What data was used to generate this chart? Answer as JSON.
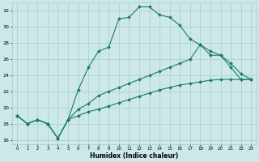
{
  "xlabel": "Humidex (Indice chaleur)",
  "bg_color": "#cce8e8",
  "grid_color": "#aacccc",
  "line_color": "#1a7a6e",
  "xlim": [
    -0.5,
    23.5
  ],
  "ylim": [
    15.5,
    33.0
  ],
  "yticks": [
    16,
    18,
    20,
    22,
    24,
    26,
    28,
    30,
    32
  ],
  "xticks": [
    0,
    1,
    2,
    3,
    4,
    5,
    6,
    7,
    8,
    9,
    10,
    11,
    12,
    13,
    14,
    15,
    16,
    17,
    18,
    19,
    20,
    21,
    22,
    23
  ],
  "series1_x": [
    0,
    1,
    2,
    3,
    4,
    5,
    6,
    7,
    8,
    9,
    10,
    11,
    12,
    13,
    14,
    15,
    16,
    17,
    18,
    19,
    20,
    21,
    22,
    23
  ],
  "series1_y": [
    19.0,
    18.0,
    18.5,
    18.0,
    16.2,
    18.5,
    22.2,
    25.0,
    27.0,
    27.5,
    31.0,
    31.2,
    32.5,
    32.5,
    31.5,
    31.2,
    30.2,
    28.5,
    27.8,
    26.5,
    26.5,
    25.0,
    23.5,
    23.5
  ],
  "series2_x": [
    0,
    1,
    2,
    3,
    4,
    5,
    6,
    7,
    8,
    9,
    10,
    11,
    12,
    13,
    14,
    15,
    16,
    17,
    18,
    19,
    20,
    21,
    22,
    23
  ],
  "series2_y": [
    19.0,
    18.0,
    18.5,
    18.0,
    16.2,
    18.5,
    19.8,
    20.5,
    21.5,
    22.0,
    22.5,
    23.0,
    23.5,
    24.0,
    24.5,
    25.0,
    25.5,
    26.0,
    27.8,
    27.0,
    26.5,
    25.5,
    24.2,
    23.5
  ],
  "series3_x": [
    0,
    1,
    2,
    3,
    4,
    5,
    6,
    7,
    8,
    9,
    10,
    11,
    12,
    13,
    14,
    15,
    16,
    17,
    18,
    19,
    20,
    21,
    22,
    23
  ],
  "series3_y": [
    19.0,
    18.0,
    18.5,
    18.0,
    16.2,
    18.5,
    19.0,
    19.5,
    19.8,
    20.2,
    20.6,
    21.0,
    21.4,
    21.8,
    22.2,
    22.5,
    22.8,
    23.0,
    23.2,
    23.4,
    23.5,
    23.5,
    23.5,
    23.5
  ]
}
